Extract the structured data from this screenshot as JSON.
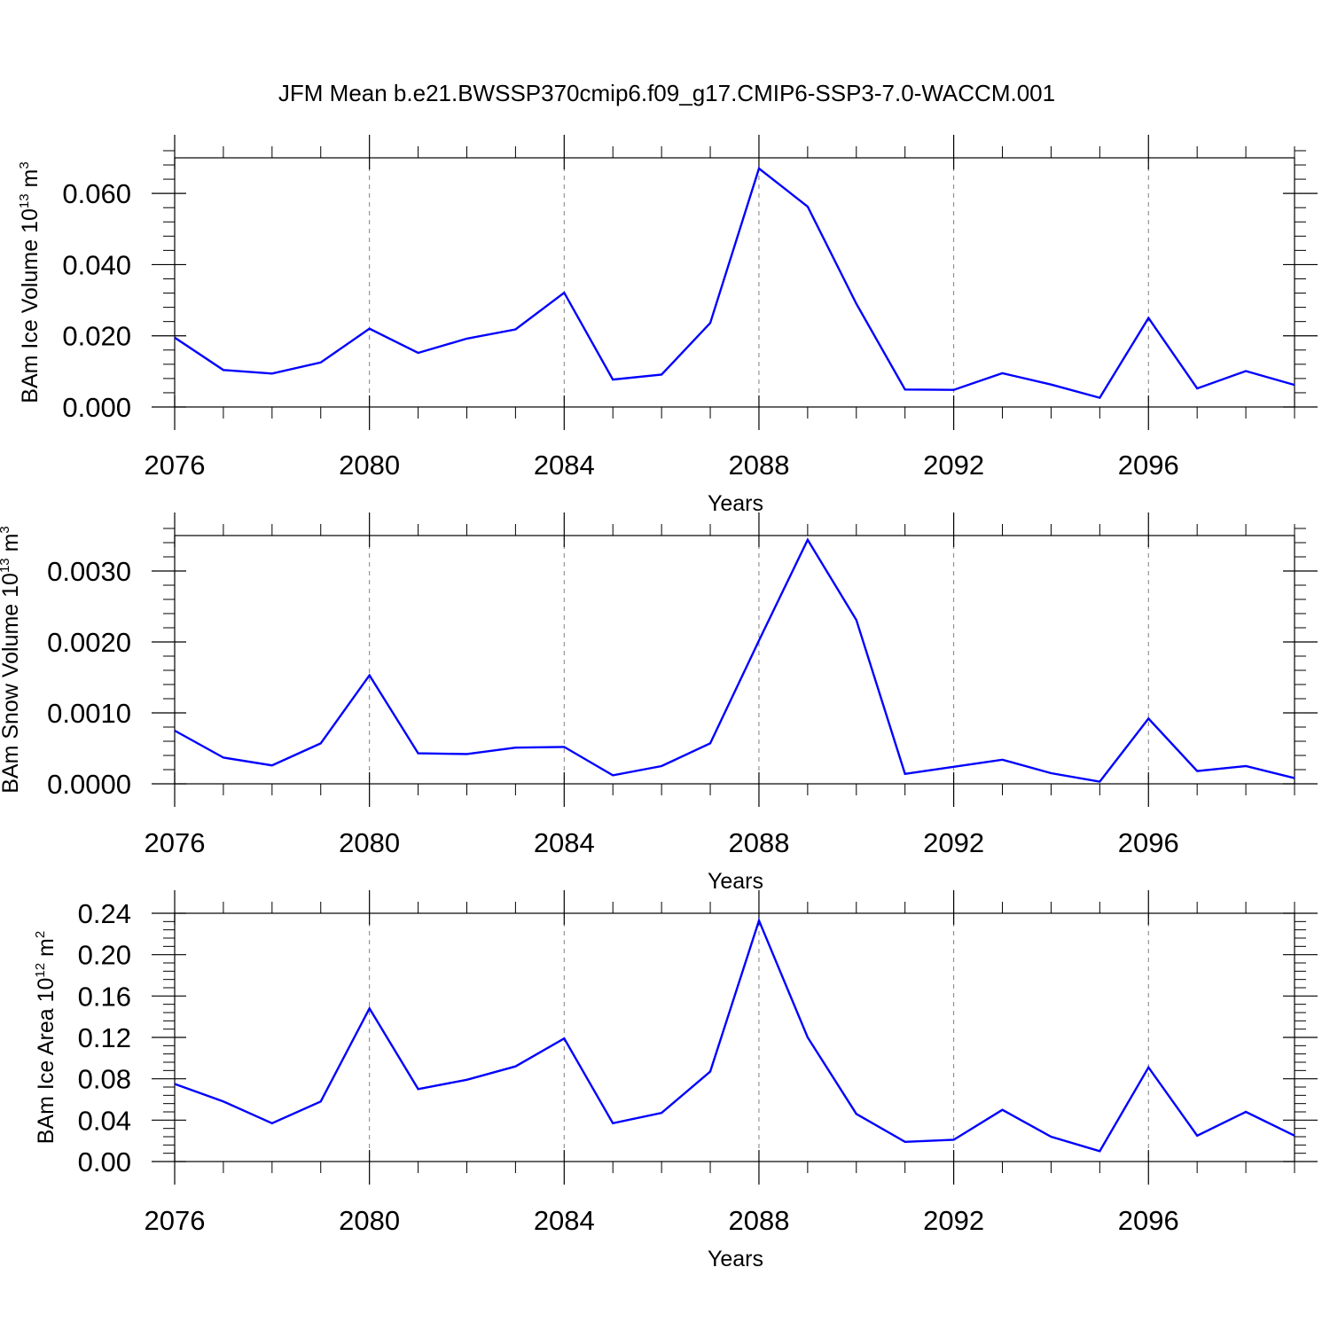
{
  "title": "JFM Mean b.e21.BWSSP370cmip6.f09_g17.CMIP6-SSP3-7.0-WACCM.001",
  "colors": {
    "series": "#0000ff",
    "axes": "#000000",
    "grid": "#808080"
  },
  "chart_data": [
    {
      "type": "line",
      "ylabel": {
        "main": "BAm Ice Volume 10",
        "sup": "13",
        "unit": " m",
        "unit_sup": "3"
      },
      "xlabel": "Years",
      "xlim": [
        2076,
        2099
      ],
      "xticks": [
        "2076",
        "2080",
        "2084",
        "2088",
        "2092",
        "2096"
      ],
      "ylim": [
        0,
        0.07
      ],
      "yticks": [
        "0.000",
        "0.020",
        "0.040",
        "0.060"
      ],
      "grid": "vertical dashed at major x ticks",
      "x": [
        2076,
        2077,
        2078,
        2079,
        2080,
        2081,
        2082,
        2083,
        2084,
        2085,
        2086,
        2087,
        2088,
        2089,
        2090,
        2091,
        2092,
        2093,
        2094,
        2095,
        2096,
        2097,
        2098,
        2099
      ],
      "series": [
        {
          "values": [
            0.0195,
            0.0104,
            0.0094,
            0.0125,
            0.022,
            0.0152,
            0.0192,
            0.0218,
            0.0321,
            0.0077,
            0.0091,
            0.0236,
            0.067,
            0.0563,
            0.029,
            0.0049,
            0.0048,
            0.0095,
            0.0063,
            0.0026,
            0.025,
            0.0052,
            0.0101,
            0.0062
          ]
        }
      ]
    },
    {
      "type": "line",
      "ylabel": {
        "main": "BAm Snow Volume 10",
        "sup": "13",
        "unit": " m",
        "unit_sup": "3"
      },
      "xlabel": "Years",
      "xlim": [
        2076,
        2099
      ],
      "xticks": [
        "2076",
        "2080",
        "2084",
        "2088",
        "2092",
        "2096"
      ],
      "ylim": [
        0,
        0.0035
      ],
      "yticks": [
        "0.0000",
        "0.0010",
        "0.0020",
        "0.0030"
      ],
      "grid": "vertical dashed at major x ticks",
      "x": [
        2076,
        2077,
        2078,
        2079,
        2080,
        2081,
        2082,
        2083,
        2084,
        2085,
        2086,
        2087,
        2088,
        2089,
        2090,
        2091,
        2092,
        2093,
        2094,
        2095,
        2096,
        2097,
        2098,
        2099
      ],
      "series": [
        {
          "values": [
            0.00075,
            0.00037,
            0.00026,
            0.00057,
            0.00153,
            0.00043,
            0.00042,
            0.00051,
            0.00052,
            0.00012,
            0.00025,
            0.00057,
            0.00202,
            0.00344,
            0.00231,
            0.00014,
            0.00024,
            0.00034,
            0.00015,
            3e-05,
            0.00092,
            0.00018,
            0.00025,
            8e-05
          ]
        }
      ]
    },
    {
      "type": "line",
      "ylabel": {
        "main": "BAm Ice Area 10",
        "sup": "12",
        "unit": " m",
        "unit_sup": "2"
      },
      "xlabel": "Years",
      "xlim": [
        2076,
        2099
      ],
      "xticks": [
        "2076",
        "2080",
        "2084",
        "2088",
        "2092",
        "2096"
      ],
      "ylim": [
        0,
        0.24
      ],
      "yticks": [
        "0.00",
        "0.04",
        "0.08",
        "0.12",
        "0.16",
        "0.20",
        "0.24"
      ],
      "grid": "vertical dashed at major x ticks",
      "x": [
        2076,
        2077,
        2078,
        2079,
        2080,
        2081,
        2082,
        2083,
        2084,
        2085,
        2086,
        2087,
        2088,
        2089,
        2090,
        2091,
        2092,
        2093,
        2094,
        2095,
        2096,
        2097,
        2098,
        2099
      ],
      "series": [
        {
          "values": [
            0.075,
            0.058,
            0.037,
            0.058,
            0.148,
            0.07,
            0.079,
            0.092,
            0.119,
            0.037,
            0.047,
            0.087,
            0.233,
            0.12,
            0.046,
            0.019,
            0.021,
            0.05,
            0.024,
            0.01,
            0.091,
            0.025,
            0.048,
            0.025
          ]
        }
      ]
    }
  ]
}
